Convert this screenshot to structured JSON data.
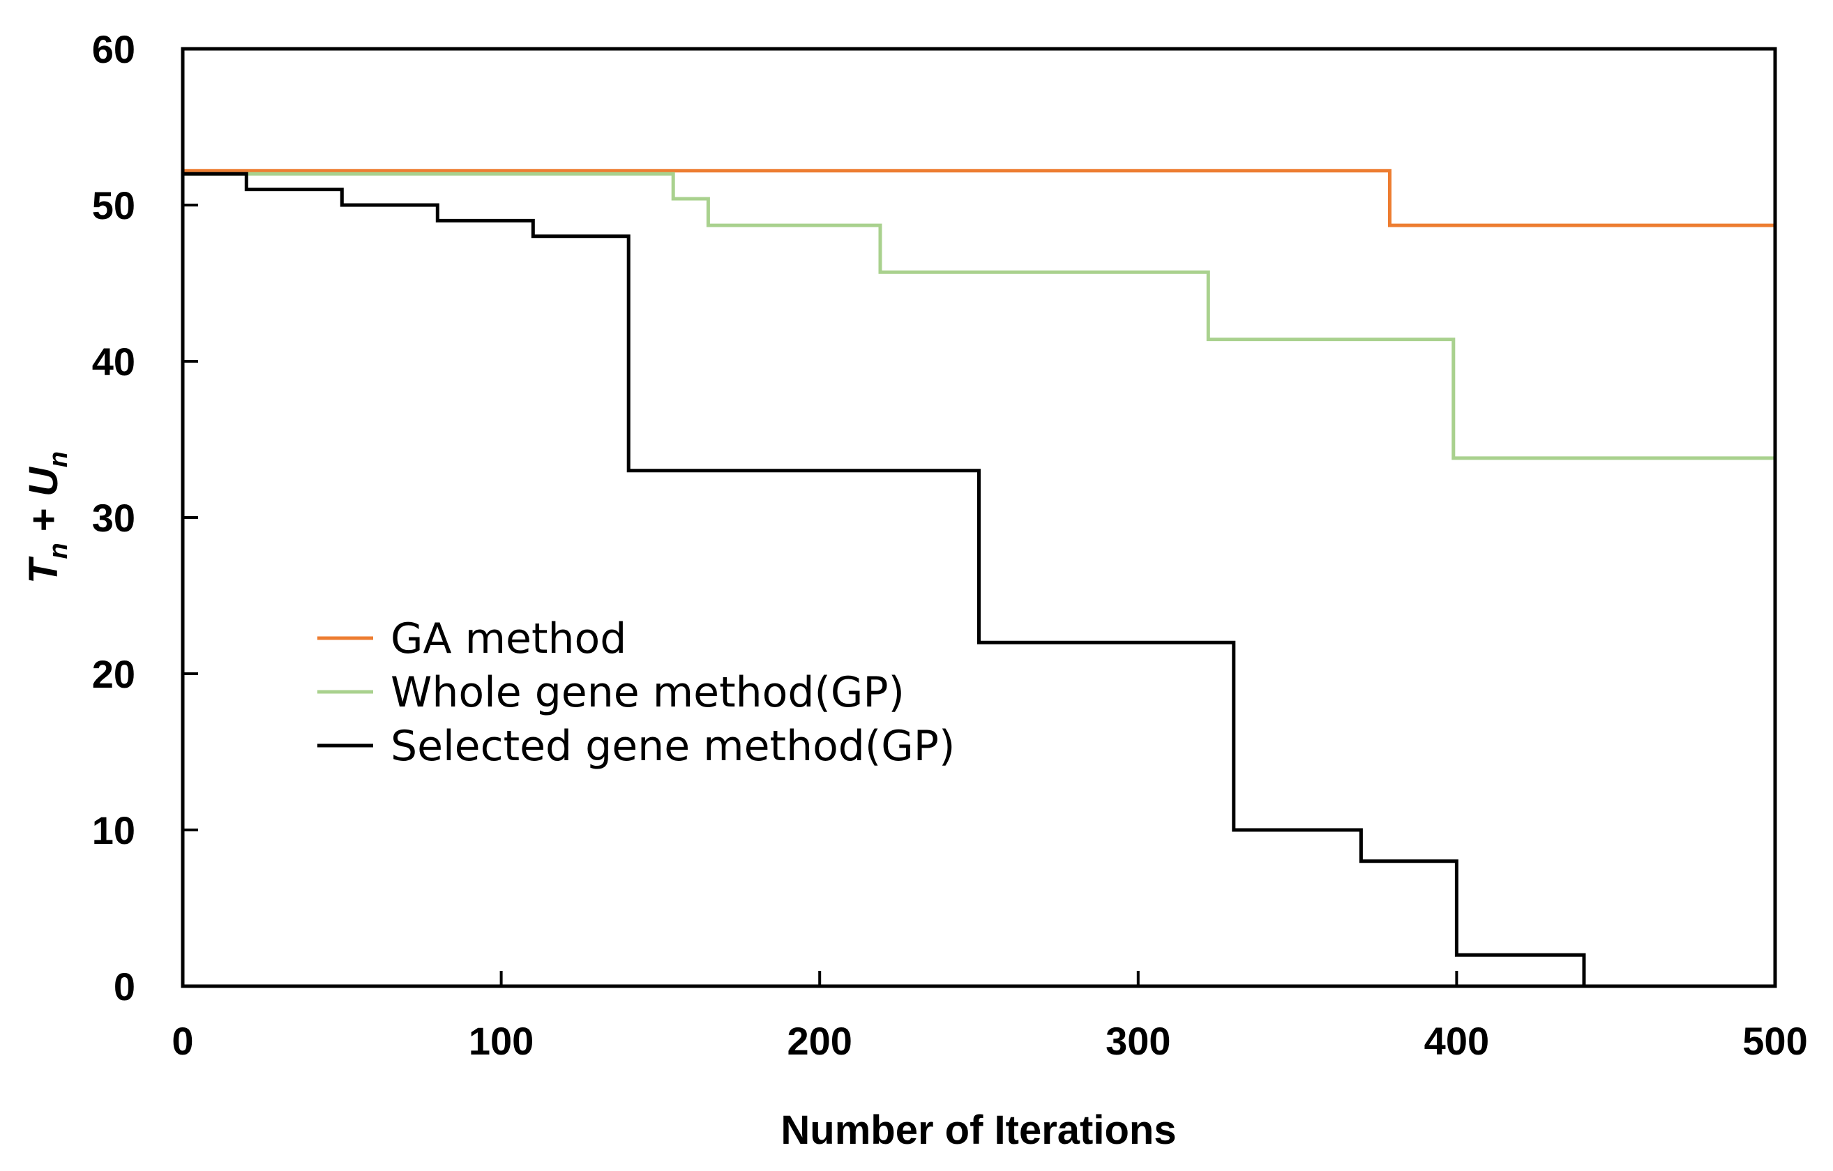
{
  "chart_data": {
    "type": "line",
    "title": "",
    "xlabel": "Number of Iterations",
    "ylabel": {
      "T": "T",
      "sub1": "n",
      "plus": " + ",
      "U": "U",
      "sub2": "n"
    },
    "xlim": [
      0,
      500
    ],
    "ylim": [
      0,
      60
    ],
    "xticks": [
      0,
      100,
      200,
      300,
      400,
      500
    ],
    "yticks": [
      0,
      10,
      20,
      30,
      40,
      50,
      60
    ],
    "grid": false,
    "legend_position": "center-left",
    "series": [
      {
        "name": "GA method",
        "color": "#ED7D31",
        "x": [
          0,
          379,
          379,
          500
        ],
        "y": [
          52.2,
          52.2,
          48.7,
          48.7
        ]
      },
      {
        "name": "Whole gene method(GP)",
        "color": "#A9D18E",
        "x": [
          0,
          154,
          154,
          165,
          165,
          219,
          219,
          322,
          322,
          399,
          399,
          500
        ],
        "y": [
          52,
          52,
          50.4,
          50.4,
          48.7,
          48.7,
          45.7,
          45.7,
          41.4,
          41.4,
          33.8,
          33.8
        ]
      },
      {
        "name": "Selected gene method(GP)",
        "color": "#000000",
        "x": [
          0,
          20,
          20,
          50,
          50,
          80,
          80,
          110,
          110,
          140,
          140,
          250,
          250,
          330,
          330,
          370,
          370,
          400,
          400,
          440,
          440
        ],
        "y": [
          52,
          52,
          51,
          51,
          50,
          50,
          49,
          49,
          48,
          48,
          33,
          33,
          22,
          22,
          10,
          10,
          8,
          8,
          2,
          2,
          0
        ]
      }
    ]
  }
}
